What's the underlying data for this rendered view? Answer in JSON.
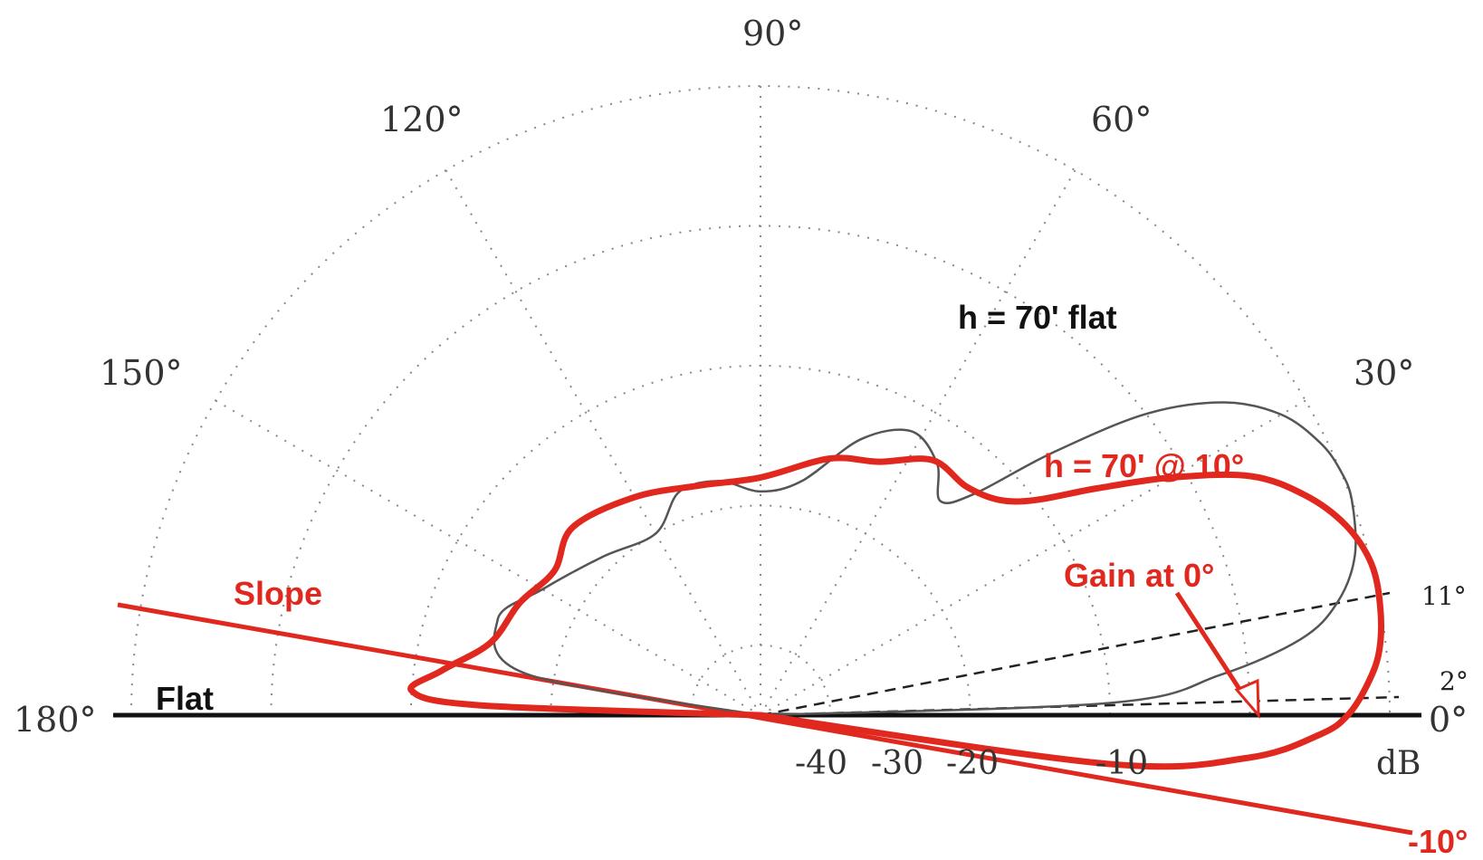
{
  "chart_data": {
    "type": "polar",
    "title": "",
    "radial_unit": "dB",
    "radial_ticks": [
      "-40",
      "-30",
      "-20",
      "-10"
    ],
    "angle_ticks": [
      "0°",
      "30°",
      "60°",
      "90°",
      "120°",
      "150°",
      "180°"
    ],
    "theta_range_deg": [
      0,
      180
    ],
    "grid": true,
    "series": [
      {
        "name": "h = 70' flat",
        "color": "#555555",
        "points_deg_db": [
          [
            0,
            -45
          ],
          [
            2,
            -20
          ],
          [
            5,
            -12
          ],
          [
            8,
            -6
          ],
          [
            11,
            -3
          ],
          [
            15,
            -1
          ],
          [
            20,
            0
          ],
          [
            23,
            0
          ],
          [
            26,
            -0.5
          ],
          [
            30,
            -2
          ],
          [
            34,
            -5
          ],
          [
            38,
            -10
          ],
          [
            42,
            -17
          ],
          [
            46,
            -23
          ],
          [
            50,
            -25
          ],
          [
            55,
            -23
          ],
          [
            62,
            -22
          ],
          [
            70,
            -24
          ],
          [
            80,
            -28
          ],
          [
            90,
            -29
          ],
          [
            100,
            -28
          ],
          [
            110,
            -28
          ],
          [
            120,
            -30
          ],
          [
            135,
            -29
          ],
          [
            150,
            -27
          ],
          [
            160,
            -25
          ],
          [
            170,
            -28
          ],
          [
            180,
            -45
          ]
        ]
      },
      {
        "name": "h = 70' @ 10°",
        "color": "#e0281e",
        "points_deg_db": [
          [
            -10,
            -45
          ],
          [
            -8,
            -20
          ],
          [
            -5,
            -10
          ],
          [
            -2,
            -5
          ],
          [
            0,
            -3
          ],
          [
            3,
            -1.5
          ],
          [
            6,
            -0.5
          ],
          [
            10,
            0
          ],
          [
            14,
            0
          ],
          [
            18,
            -1
          ],
          [
            22,
            -3
          ],
          [
            26,
            -6
          ],
          [
            30,
            -11
          ],
          [
            34,
            -16
          ],
          [
            38,
            -20
          ],
          [
            42,
            -22
          ],
          [
            48,
            -23
          ],
          [
            56,
            -23
          ],
          [
            65,
            -25
          ],
          [
            75,
            -26
          ],
          [
            90,
            -28
          ],
          [
            105,
            -28
          ],
          [
            120,
            -27
          ],
          [
            135,
            -26
          ],
          [
            145,
            -27
          ],
          [
            155,
            -26
          ],
          [
            165,
            -25
          ],
          [
            172,
            -22
          ],
          [
            176,
            -20
          ],
          [
            178,
            -25
          ],
          [
            170,
            -45
          ]
        ]
      }
    ],
    "reference_lines": [
      {
        "label": "11°",
        "angle_deg": 11,
        "style": "dashed"
      },
      {
        "label": "2°",
        "angle_deg": 2,
        "style": "dashed"
      },
      {
        "label": "0°",
        "angle_deg": 0,
        "style": "solid"
      },
      {
        "label": "-10°",
        "angle_deg": -10,
        "style": "solid"
      }
    ],
    "annotations": [
      {
        "text": "h = 70' flat"
      },
      {
        "text": "h = 70' @ 10°"
      },
      {
        "text": "Gain at 0°"
      },
      {
        "text": "Slope"
      },
      {
        "text": "Flat"
      }
    ]
  },
  "labels": {
    "angle_90": "90°",
    "angle_120": "120°",
    "angle_60": "60°",
    "angle_150": "150°",
    "angle_30": "30°",
    "angle_180": "180°",
    "angle_0": "0°",
    "ref_11": "11°",
    "ref_2": "2°",
    "ref_neg10": "-10°",
    "db_unit": "dB",
    "db_m40": "-40",
    "db_m30": "-30",
    "db_m20": "-20",
    "db_m10": "-10",
    "flat_series": "h = 70' flat",
    "sloped_series": "h = 70' @ 10°",
    "gain_note": "Gain at 0°",
    "slope_note": "Slope",
    "flat_note": "Flat"
  },
  "colors": {
    "red": "#e0281e",
    "black": "#111111",
    "grey": "#555555"
  }
}
